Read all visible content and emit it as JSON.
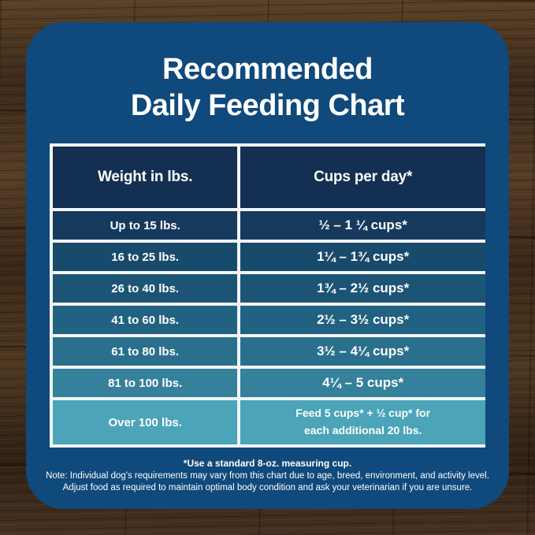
{
  "title": {
    "line1": "Recommended",
    "line2": "Daily Feeding Chart"
  },
  "table": {
    "headers": [
      "Weight in lbs.",
      "Cups per day*"
    ],
    "rows": [
      {
        "weight": "Up to 15 lbs.",
        "cups": "½ – 1 ¼ cups*"
      },
      {
        "weight": "16 to 25 lbs.",
        "cups": "1¼ – 1¾  cups*"
      },
      {
        "weight": "26 to 40 lbs.",
        "cups": "1¾ – 2½ cups*"
      },
      {
        "weight": "41 to 60 lbs.",
        "cups": "2½ – 3½ cups*"
      },
      {
        "weight": "61 to 80 lbs.",
        "cups": "3½ – 4¼ cups*"
      },
      {
        "weight": "81 to 100 lbs.",
        "cups": "4¼ – 5 cups*"
      },
      {
        "weight": "Over 100 lbs.",
        "cups_line1": "Feed 5 cups*  + ½ cup* for",
        "cups_line2": "each  additional 20 lbs."
      }
    ]
  },
  "footnotes": {
    "line1": "*Use a standard 8-oz. measuring cup.",
    "line2": "Note: Individual dog's requirements may vary from this chart due to age, breed, environment, and activity level.",
    "line3": "Adjust food as required to maintain optimal body condition and ask your veterinarian if you are unsure."
  },
  "colors": {
    "card_bg": "#10497b",
    "header_cell": "#132f51",
    "gridline": "#f2f4f6",
    "row0": "#163a5e",
    "row1": "#184a6c",
    "row2": "#1c5476",
    "row3": "#216181",
    "row4": "#2a708d",
    "row5": "#35809a",
    "row6": "#4ba4b8",
    "text": "#ffffff"
  },
  "chart_data": {
    "type": "table",
    "title": "Recommended Daily Feeding Chart",
    "columns": [
      "Weight in lbs.",
      "Cups per day*"
    ],
    "rows": [
      [
        "Up to 15 lbs.",
        "½ – 1 ¼ cups*"
      ],
      [
        "16 to 25 lbs.",
        "1¼ – 1¾ cups*"
      ],
      [
        "26 to 40 lbs.",
        "1¾ – 2½ cups*"
      ],
      [
        "41 to 60 lbs.",
        "2½ – 3½ cups*"
      ],
      [
        "61 to 80 lbs.",
        "3½ – 4¼ cups*"
      ],
      [
        "81 to 100 lbs.",
        "4¼ – 5 cups*"
      ],
      [
        "Over 100 lbs.",
        "Feed 5 cups* + ½ cup* for each additional 20 lbs."
      ]
    ],
    "notes": [
      "*Use a standard 8-oz. measuring cup.",
      "Note: Individual dog's requirements may vary from this chart due to age, breed, environment, and activity level.",
      "Adjust food as required to maintain optimal body condition and ask your veterinarian if you are unsure."
    ]
  }
}
